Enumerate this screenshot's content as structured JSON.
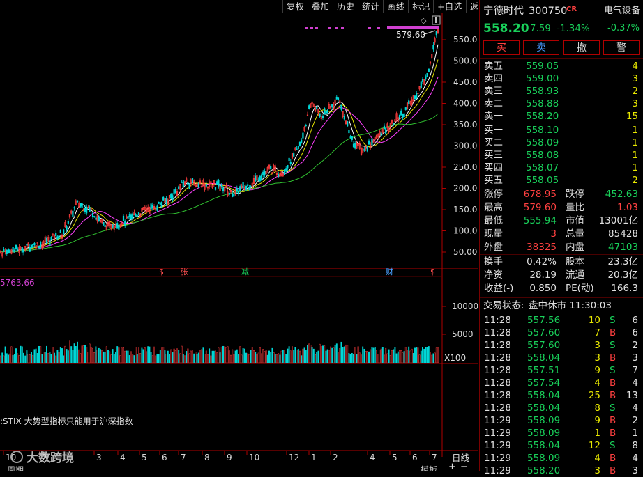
{
  "toolbar": [
    "复权",
    "叠加",
    "历史",
    "统计",
    "画线",
    "标记",
    "+自选",
    "返回"
  ],
  "chart": {
    "price_high_label": "579.60",
    "y_ticks": [
      "550.0",
      "500.0",
      "450.0",
      "400.0",
      "350.0",
      "300.0",
      "250.0",
      "200.0",
      "150.0",
      "100.0",
      "50.00"
    ],
    "vol_ticks": [
      "10000",
      "5000"
    ],
    "vol_unit": "X100",
    "vol_readout": "5763.66",
    "events": [
      {
        "t": "$",
        "color": "#ff5050"
      },
      {
        "t": "张",
        "color": "#ff5050"
      },
      {
        "t": "减",
        "color": "#19d05a"
      },
      {
        "t": "财",
        "color": "#4aa0ff"
      },
      {
        "t": "$",
        "color": "#ff5050"
      }
    ],
    "stix_note": ":STIX 大势型指标只能用于沪深指数",
    "months": [
      "10",
      "2",
      "3",
      "4",
      "5",
      "6",
      "7",
      "8",
      "9",
      "10",
      "12",
      "1",
      "2",
      "4",
      "5",
      "6",
      "7"
    ],
    "bottom_right": [
      "+",
      "−",
      "日线"
    ],
    "bottom_labels": [
      "模板",
      "周期"
    ],
    "watermark": "大数跨境"
  },
  "quote": {
    "name": "宁德时代",
    "code": "300750",
    "badge": "CR",
    "sector": "电气设备",
    "price": "558.20",
    "change": "-7.59",
    "change_pct": "-1.34%",
    "sector_pct": "-0.37%"
  },
  "trade_buttons": [
    "买",
    "卖",
    "撤",
    "警"
  ],
  "asks": [
    {
      "label": "卖五",
      "price": "559.05",
      "vol": "4"
    },
    {
      "label": "卖四",
      "price": "559.00",
      "vol": "3"
    },
    {
      "label": "卖三",
      "price": "558.93",
      "vol": "2"
    },
    {
      "label": "卖二",
      "price": "558.88",
      "vol": "3"
    },
    {
      "label": "卖一",
      "price": "558.20",
      "vol": "15"
    }
  ],
  "bids": [
    {
      "label": "买一",
      "price": "558.10",
      "vol": "1"
    },
    {
      "label": "买二",
      "price": "558.09",
      "vol": "1"
    },
    {
      "label": "买三",
      "price": "558.08",
      "vol": "1"
    },
    {
      "label": "买四",
      "price": "558.07",
      "vol": "1"
    },
    {
      "label": "买五",
      "price": "558.05",
      "vol": "2"
    }
  ],
  "stats1": [
    {
      "l1": "涨停",
      "v1": "678.95",
      "c1": "red",
      "l2": "跌停",
      "v2": "452.63",
      "c2": "green"
    },
    {
      "l1": "最高",
      "v1": "579.60",
      "c1": "red",
      "l2": "量比",
      "v2": "1.03",
      "c2": "red"
    },
    {
      "l1": "最低",
      "v1": "555.94",
      "c1": "green",
      "l2": "市值",
      "v2": "13001亿",
      "c2": "white"
    },
    {
      "l1": "现量",
      "v1": "3",
      "c1": "red",
      "l2": "总量",
      "v2": "85428",
      "c2": "white"
    },
    {
      "l1": "外盘",
      "v1": "38325",
      "c1": "red",
      "l2": "内盘",
      "v2": "47103",
      "c2": "green"
    }
  ],
  "stats2": [
    {
      "l1": "换手",
      "v1": "0.42%",
      "l2": "股本",
      "v2": "23.3亿"
    },
    {
      "l1": "净资",
      "v1": "28.19",
      "l2": "流通",
      "v2": "20.3亿"
    },
    {
      "l1": "收益(-)",
      "v1": "0.850",
      "l2": "PE(动)",
      "v2": "166.3"
    }
  ],
  "status": {
    "label": "交易状态:",
    "value": "盘中休市 11:30:03"
  },
  "ticks": [
    {
      "time": "11:28",
      "price": "557.56",
      "vol": "10",
      "side": "S",
      "n": "6"
    },
    {
      "time": "11:28",
      "price": "557.60",
      "vol": "7",
      "side": "B",
      "n": "6"
    },
    {
      "time": "11:28",
      "price": "557.60",
      "vol": "3",
      "side": "S",
      "n": "2"
    },
    {
      "time": "11:28",
      "price": "558.04",
      "vol": "3",
      "side": "B",
      "n": "3"
    },
    {
      "time": "11:28",
      "price": "557.51",
      "vol": "9",
      "side": "S",
      "n": "7"
    },
    {
      "time": "11:28",
      "price": "557.54",
      "vol": "4",
      "side": "B",
      "n": "4"
    },
    {
      "time": "11:28",
      "price": "558.04",
      "vol": "25",
      "side": "B",
      "n": "13"
    },
    {
      "time": "11:28",
      "price": "558.04",
      "vol": "8",
      "side": "S",
      "n": "4"
    },
    {
      "time": "11:29",
      "price": "558.09",
      "vol": "9",
      "side": "B",
      "n": "2"
    },
    {
      "time": "11:29",
      "price": "558.09",
      "vol": "1",
      "side": "B",
      "n": "1"
    },
    {
      "time": "11:29",
      "price": "558.04",
      "vol": "12",
      "side": "S",
      "n": "8"
    },
    {
      "time": "11:29",
      "price": "558.09",
      "vol": "4",
      "side": "B",
      "n": "4"
    },
    {
      "time": "11:29",
      "price": "558.20",
      "vol": "3",
      "side": "B",
      "n": "3"
    }
  ]
}
